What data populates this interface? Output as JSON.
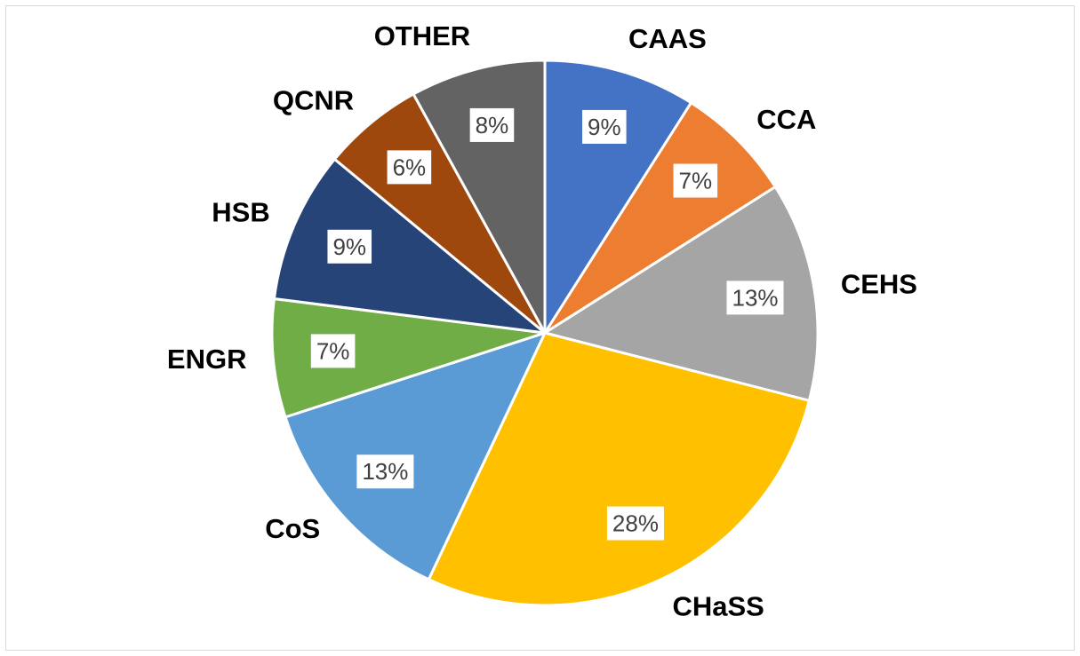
{
  "chart_data": {
    "type": "pie",
    "categories": [
      "CAAS",
      "CCA",
      "CEHS",
      "CHaSS",
      "CoS",
      "ENGR",
      "HSB",
      "QCNR",
      "OTHER"
    ],
    "values": [
      9,
      7,
      13,
      28,
      13,
      7,
      9,
      6,
      8
    ],
    "value_labels": [
      "9%",
      "7%",
      "13%",
      "28%",
      "13%",
      "7%",
      "9%",
      "6%",
      "8%"
    ],
    "colors": [
      "#4472c4",
      "#ed7d31",
      "#a5a5a5",
      "#ffc000",
      "#5b9bd5",
      "#70ad47",
      "#264478",
      "#9e480e",
      "#636363"
    ]
  }
}
